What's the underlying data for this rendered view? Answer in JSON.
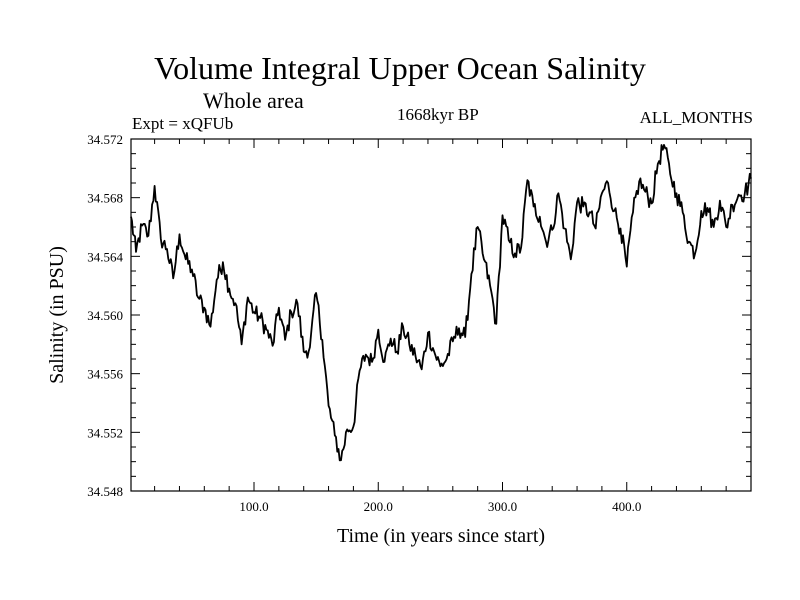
{
  "chart_data": {
    "type": "line",
    "title": "Volume Integral Upper Ocean Salinity",
    "subtitle": "Whole area",
    "left_label": "Expt = xQFUb",
    "center_label": "1668kyr BP",
    "right_label": "ALL_MONTHS",
    "xlabel": "Time (in years since start)",
    "ylabel": "Salinity (in PSU)",
    "xlim": [
      1,
      500
    ],
    "ylim": [
      34.548,
      34.572
    ],
    "x_ticks": [
      100,
      200,
      300,
      400
    ],
    "x_tick_labels": [
      "100.0",
      "200.0",
      "300.0",
      "400.0"
    ],
    "y_ticks": [
      34.548,
      34.552,
      34.556,
      34.56,
      34.564,
      34.568,
      34.572
    ],
    "y_tick_labels": [
      "34.548",
      "34.552",
      "34.556",
      "34.560",
      "34.564",
      "34.568",
      "34.572"
    ],
    "grid": false,
    "series": [
      {
        "name": "Salinity",
        "x": [
          1,
          5,
          10,
          15,
          20,
          25,
          30,
          35,
          40,
          45,
          50,
          55,
          60,
          65,
          70,
          75,
          80,
          85,
          90,
          95,
          100,
          105,
          110,
          115,
          120,
          125,
          130,
          135,
          140,
          145,
          150,
          155,
          160,
          165,
          170,
          175,
          180,
          185,
          190,
          195,
          200,
          205,
          210,
          215,
          220,
          225,
          230,
          235,
          240,
          245,
          250,
          255,
          260,
          265,
          270,
          275,
          280,
          285,
          290,
          295,
          300,
          305,
          310,
          315,
          320,
          325,
          330,
          335,
          340,
          345,
          350,
          355,
          360,
          365,
          370,
          375,
          380,
          385,
          390,
          395,
          400,
          405,
          410,
          415,
          420,
          425,
          430,
          435,
          440,
          445,
          450,
          455,
          460,
          465,
          470,
          475,
          480,
          485,
          490,
          495,
          500
        ],
        "values": [
          34.5667,
          34.5643,
          34.5661,
          34.5654,
          34.5688,
          34.5652,
          34.5645,
          34.5625,
          34.5655,
          34.5638,
          34.5631,
          34.5612,
          34.5605,
          34.5592,
          34.5624,
          34.5636,
          34.5618,
          34.5608,
          34.558,
          34.5612,
          34.5602,
          34.5598,
          34.559,
          34.5579,
          34.5605,
          34.5583,
          34.5602,
          34.5608,
          34.5575,
          34.5578,
          34.5615,
          34.5583,
          34.5538,
          34.5518,
          34.5501,
          34.5522,
          34.5524,
          34.5562,
          34.5573,
          34.5568,
          34.559,
          34.5568,
          34.5584,
          34.5575,
          34.5592,
          34.558,
          34.5572,
          34.5563,
          34.5588,
          34.5575,
          34.5565,
          34.557,
          34.5582,
          34.5591,
          34.5585,
          34.5628,
          34.566,
          34.5638,
          34.562,
          34.5594,
          34.5668,
          34.5651,
          34.5642,
          34.5646,
          34.5692,
          34.5674,
          34.5667,
          34.565,
          34.5658,
          34.5683,
          34.5659,
          34.5638,
          34.5677,
          34.5674,
          34.567,
          34.5659,
          34.5683,
          34.569,
          34.5671,
          34.5659,
          34.5633,
          34.567,
          34.5691,
          34.5684,
          34.5676,
          34.5703,
          34.5716,
          34.5696,
          34.5683,
          34.567,
          34.565,
          34.5642,
          34.5671,
          34.5673,
          34.566,
          34.5678,
          34.566,
          34.5675,
          34.5682,
          34.5683,
          34.5693
        ]
      }
    ]
  }
}
